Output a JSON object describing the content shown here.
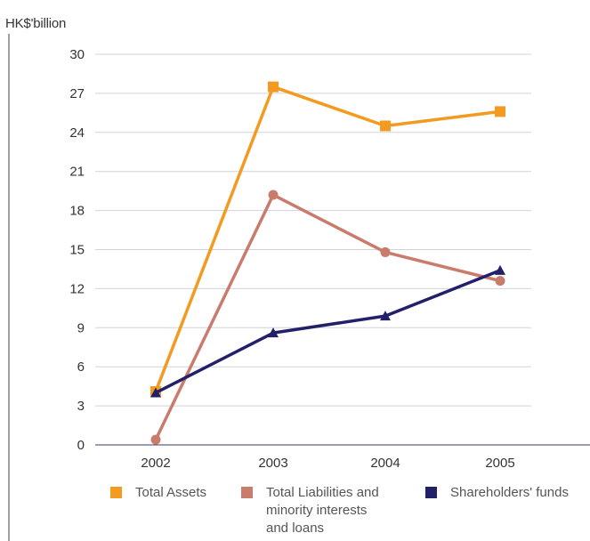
{
  "chart_data": {
    "type": "line",
    "ylabel": "HK$'billion",
    "categories": [
      "2002",
      "2003",
      "2004",
      "2005"
    ],
    "yticks": [
      "0",
      "3",
      "6",
      "9",
      "12",
      "15",
      "18",
      "21",
      "24",
      "27",
      "30"
    ],
    "ylim": [
      0,
      30
    ],
    "grid": true,
    "legend_position": "bottom",
    "series": [
      {
        "name": "Total Assets",
        "values": [
          4.1,
          27.5,
          24.5,
          25.6
        ],
        "color": "#f39a21",
        "marker": "square"
      },
      {
        "name": "Total Liabilities and minority interests and loans",
        "values": [
          0.4,
          19.2,
          14.8,
          12.6
        ],
        "color": "#c97b6c",
        "marker": "circle"
      },
      {
        "name": "Shareholders' funds",
        "values": [
          4.0,
          8.6,
          9.9,
          13.4
        ],
        "color": "#23206a",
        "marker": "triangle"
      }
    ]
  },
  "legend": {
    "total_assets": "Total Assets",
    "total_liabilities_line1": "Total Liabilities and",
    "total_liabilities_line2": "minority interests",
    "total_liabilities_line3": "and loans",
    "shareholders_funds": "Shareholders' funds"
  }
}
